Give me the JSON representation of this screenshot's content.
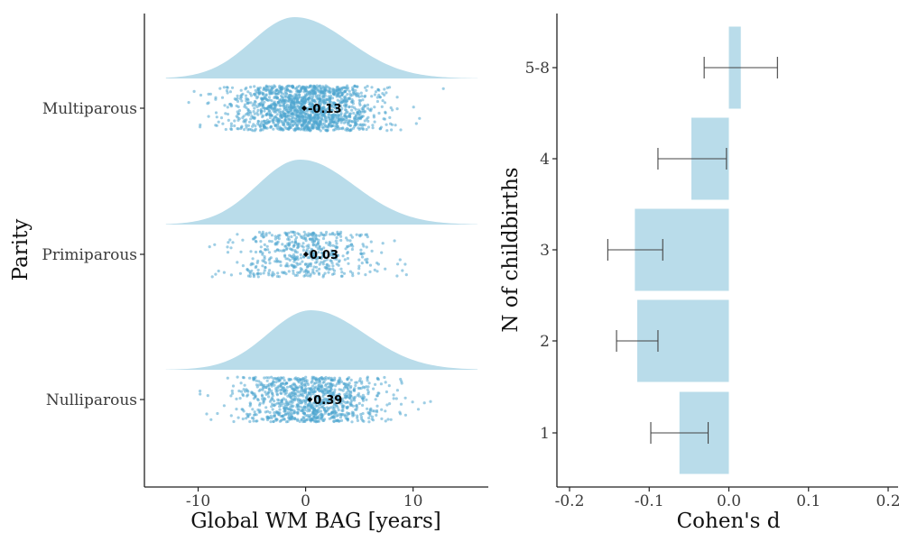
{
  "chart_data": [
    {
      "type": "raincloud",
      "xlabel": "Global WM BAG [years]",
      "ylabel": "Parity",
      "xlim": [
        -15,
        17
      ],
      "xticks": [
        -10,
        0,
        10
      ],
      "colors": {
        "density": "#b9dcea",
        "points": "#4fa6cf",
        "mean": "#000000"
      },
      "groups": [
        {
          "name": "Multiparous",
          "mean": -0.13,
          "mean_label": "-0.13",
          "range": [
            -11,
            13
          ],
          "density_mode": -1.0,
          "n_points": 1500
        },
        {
          "name": "Primiparous",
          "mean": 0.03,
          "mean_label": "0.03",
          "range": [
            -11,
            10
          ],
          "density_mode": -0.5,
          "n_points": 500
        },
        {
          "name": "Nulliparous",
          "mean": 0.39,
          "mean_label": "0.39",
          "range": [
            -10,
            14
          ],
          "density_mode": 0.5,
          "n_points": 1000
        }
      ]
    },
    {
      "type": "bar",
      "orientation": "horizontal",
      "xlabel": "Cohen's d",
      "ylabel": "N of childbirths",
      "xlim": [
        -0.2,
        0.2
      ],
      "xticks": [
        -0.2,
        -0.1,
        0.0,
        0.1,
        0.2
      ],
      "xtick_labels": [
        "-0.2",
        "-0.1",
        "0.0",
        "0.1",
        "0.2"
      ],
      "bar_color": "#b9dcea",
      "errorbar_color": "#444444",
      "categories": [
        "1",
        "2",
        "3",
        "4",
        "5-8"
      ],
      "values": [
        -0.062,
        -0.115,
        -0.118,
        -0.047,
        0.015
      ],
      "ci": [
        [
          -0.098,
          -0.026
        ],
        [
          -0.141,
          -0.089
        ],
        [
          -0.152,
          -0.083
        ],
        [
          -0.089,
          -0.003
        ],
        [
          -0.031,
          0.061
        ]
      ]
    }
  ]
}
